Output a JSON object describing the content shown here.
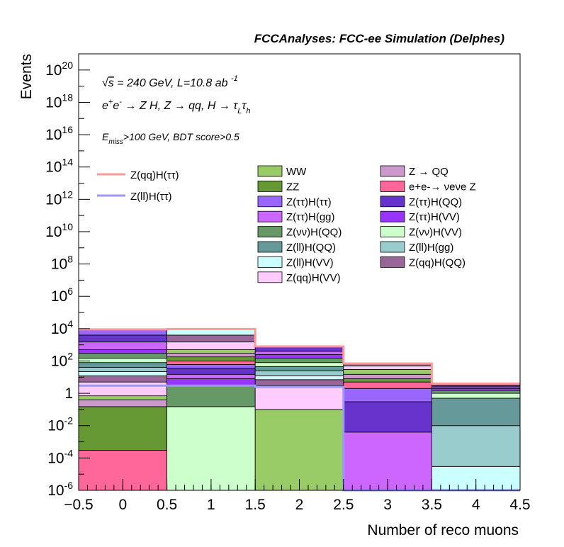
{
  "header": {
    "title": "FCCAnalyses: FCC-ee Simulation (Delphes)"
  },
  "annotations": {
    "energy_line": "√s = 240 GeV, L=10.8 ab -1",
    "process_line": "e+e- → Z H, Z → qq, H → τL τh",
    "cut_line": "Emiss>100 GeV, BDT score>0.5"
  },
  "chart_data": {
    "type": "bar",
    "title": "FCCAnalyses: FCC-ee Simulation (Delphes)",
    "xlabel": "Number of reco muons",
    "ylabel": "Events",
    "bin_edges": [
      -0.5,
      0.5,
      1.5,
      2.5,
      3.5,
      4.5
    ],
    "xlim": [
      -0.5,
      4.5
    ],
    "ylim": [
      1e-06,
      1e+21
    ],
    "yscale": "log",
    "x_ticks": [
      "−0.5",
      "0",
      "0.5",
      "1",
      "1.5",
      "2",
      "2.5",
      "3",
      "3.5",
      "4",
      "4.5"
    ],
    "y_ticks": [
      "10-6",
      "10-4",
      "10-2",
      "1",
      "102",
      "104",
      "106",
      "108",
      "1010",
      "1012",
      "1014",
      "1016",
      "1018",
      "1020"
    ],
    "stacked": true,
    "legend_position": "top-right",
    "stack_boundaries_per_bin": [
      [
        0.0003,
        0.15,
        0.4,
        0.7,
        5,
        12,
        22,
        40,
        80,
        150,
        300,
        500,
        1500,
        4000,
        9000
      ],
      [
        0.15,
        3,
        8,
        15,
        35,
        60,
        100,
        180,
        300,
        500,
        1500,
        4000,
        9500
      ],
      [
        0.1,
        3,
        7,
        12,
        25,
        45,
        80,
        150,
        250,
        400,
        800
      ],
      [
        0.004,
        0.3,
        2,
        5,
        8,
        15,
        30,
        50,
        70
      ],
      [
        3e-05,
        0.01,
        0.5,
        1,
        1.5,
        2,
        2.5,
        3,
        4
      ]
    ],
    "series": [
      {
        "name": "WW",
        "color": "#99cc66"
      },
      {
        "name": "ZZ",
        "color": "#669933"
      },
      {
        "name": "Z(ττ)H(ττ)",
        "color": "#9966ff"
      },
      {
        "name": "Z(ττ)H(gg)",
        "color": "#cc66ff"
      },
      {
        "name": "Z(νν)H(QQ)",
        "color": "#669966"
      },
      {
        "name": "Z(ll)H(QQ)",
        "color": "#669999"
      },
      {
        "name": "Z(ll)H(VV)",
        "color": "#ccffff"
      },
      {
        "name": "Z(qq)H(VV)",
        "color": "#ffccff"
      },
      {
        "name": "Z → QQ",
        "color": "#cc99cc"
      },
      {
        "name": "e+e-→ νeνe Z",
        "color": "#ff6699"
      },
      {
        "name": "Z(ττ)H(QQ)",
        "color": "#6633cc"
      },
      {
        "name": "Z(ττ)H(VV)",
        "color": "#9933ff"
      },
      {
        "name": "Z(νν)H(VV)",
        "color": "#ccffcc"
      },
      {
        "name": "Z(ll)H(gg)",
        "color": "#99cccc"
      },
      {
        "name": "Z(qq)H(QQ)",
        "color": "#996699"
      }
    ],
    "signals": [
      {
        "name": "Z(qq)H(ττ)",
        "color": "#ff9999",
        "values": [
          9000,
          9500,
          800,
          70,
          4
        ]
      },
      {
        "name": "Z(ll)H(ττ)",
        "color": "#9999ff",
        "values": [
          3,
          3,
          2.5,
          1e-06,
          1e-06
        ]
      }
    ]
  }
}
